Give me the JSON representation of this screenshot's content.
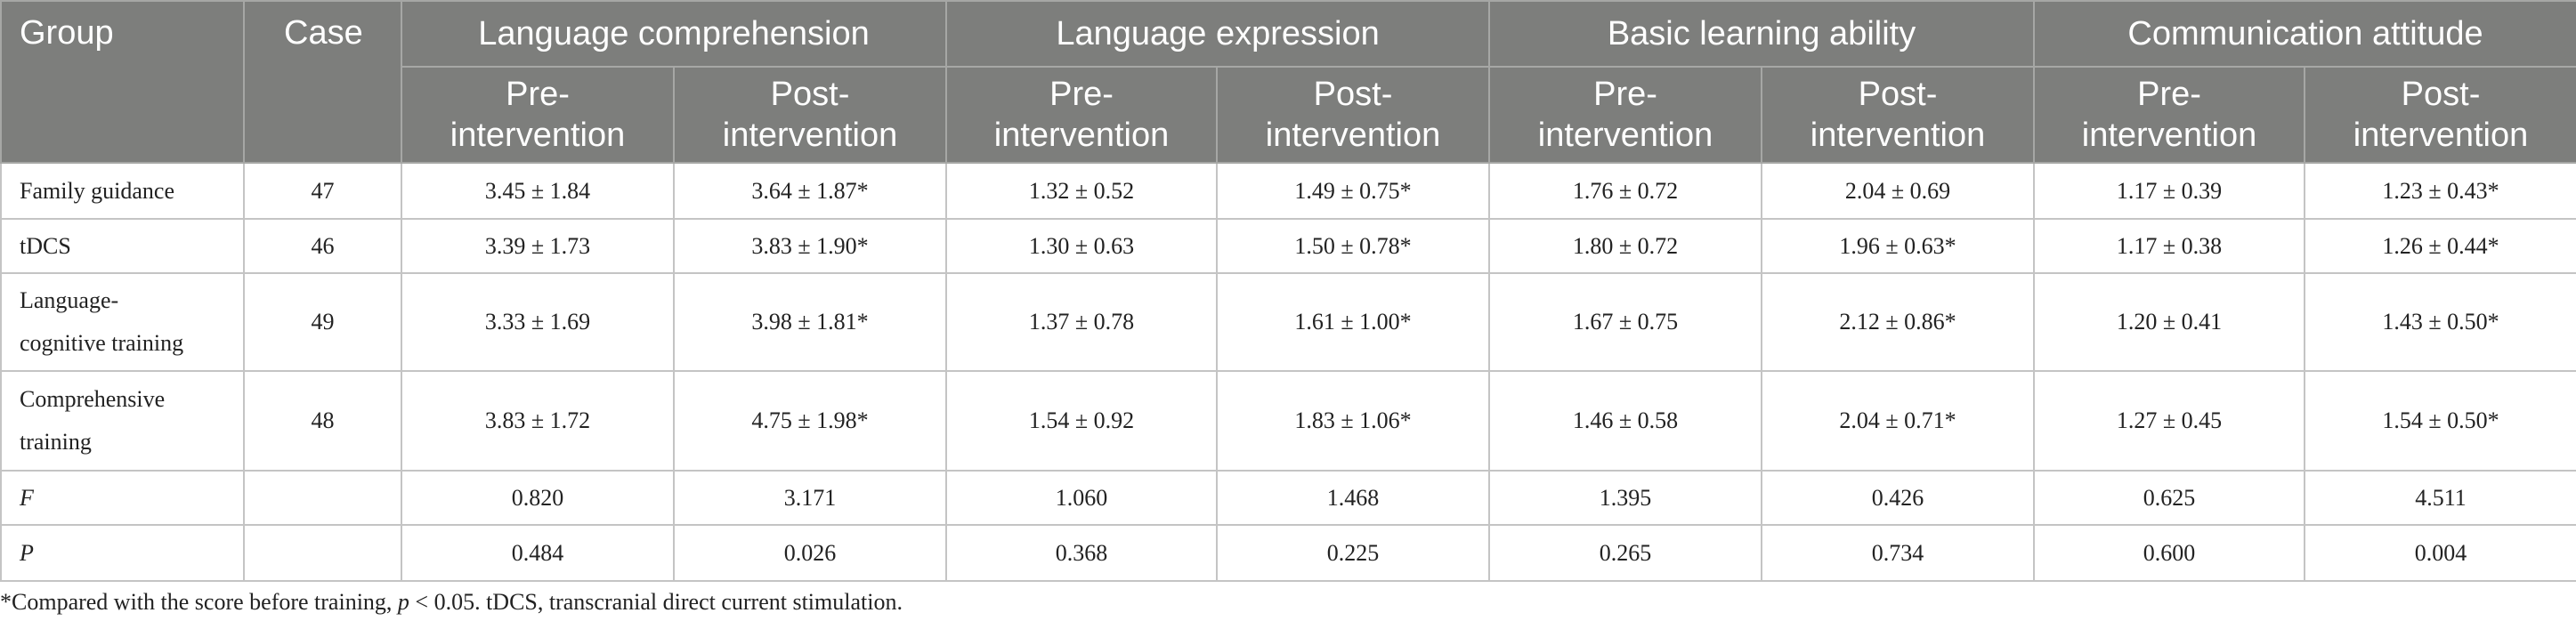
{
  "table": {
    "headers": {
      "group": "Group",
      "case": "Case",
      "groups": [
        "Language comprehension",
        "Language expression",
        "Basic learning ability",
        "Communication attitude"
      ],
      "pre_a": "Pre-",
      "pre_b": "intervention",
      "post_a": "Post-",
      "post_b": "intervention"
    },
    "rows": [
      {
        "label_1": "Family guidance",
        "label_2": "",
        "case": "47",
        "values": [
          "3.45 ± 1.84",
          "3.64 ± 1.87*",
          "1.32 ± 0.52",
          "1.49 ± 0.75*",
          "1.76 ± 0.72",
          "2.04 ± 0.69",
          "1.17 ± 0.39",
          "1.23 ± 0.43*"
        ]
      },
      {
        "label_1": "tDCS",
        "label_2": "",
        "case": "46",
        "values": [
          "3.39 ± 1.73",
          "3.83 ± 1.90*",
          "1.30 ± 0.63",
          "1.50 ± 0.78*",
          "1.80 ± 0.72",
          "1.96 ± 0.63*",
          "1.17 ± 0.38",
          "1.26 ± 0.44*"
        ]
      },
      {
        "label_1": "Language-",
        "label_2": "cognitive training",
        "case": "49",
        "values": [
          "3.33 ± 1.69",
          "3.98 ± 1.81*",
          "1.37 ± 0.78",
          "1.61 ± 1.00*",
          "1.67 ± 0.75",
          "2.12 ± 0.86*",
          "1.20 ± 0.41",
          "1.43 ± 0.50*"
        ]
      },
      {
        "label_1": "Comprehensive",
        "label_2": "training",
        "case": "48",
        "values": [
          "3.83 ± 1.72",
          "4.75 ± 1.98*",
          "1.54 ± 0.92",
          "1.83 ± 1.06*",
          "1.46 ± 0.58",
          "2.04 ± 0.71*",
          "1.27 ± 0.45",
          "1.54 ± 0.50*"
        ]
      },
      {
        "label_1": "F",
        "label_2": "",
        "case": "",
        "values": [
          "0.820",
          "3.171",
          "1.060",
          "1.468",
          "1.395",
          "0.426",
          "0.625",
          "4.511"
        ]
      },
      {
        "label_1": "P",
        "label_2": "",
        "case": "",
        "values": [
          "0.484",
          "0.026",
          "0.368",
          "0.225",
          "0.265",
          "0.734",
          "0.600",
          "0.004"
        ]
      }
    ]
  },
  "footnote": {
    "part1": "*Compared with the score before training, ",
    "p_symbol": "p",
    "part2": " < 0.05. tDCS, transcranial direct current stimulation."
  }
}
